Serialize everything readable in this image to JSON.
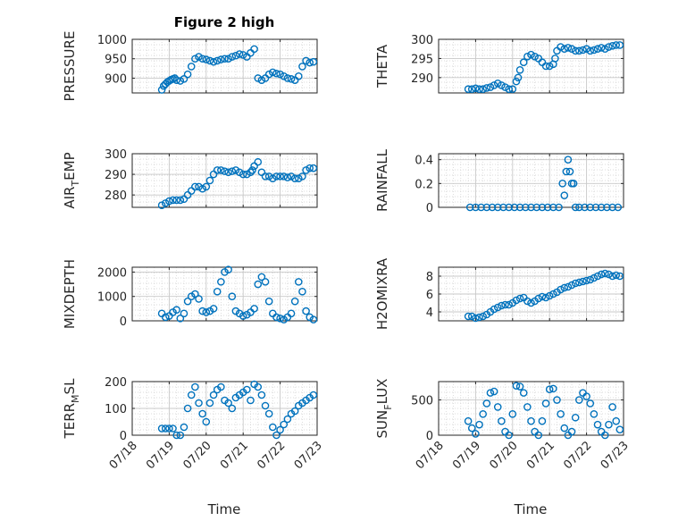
{
  "figure": {
    "title": "Figure 2 high",
    "xlabel": "Time",
    "x_ticks": [
      "07/18",
      "07/19",
      "07/20",
      "07/21",
      "07/22",
      "07/23"
    ],
    "marker_color": "#0072BD",
    "marker": "open-circle"
  },
  "chart_data": [
    {
      "type": "scatter",
      "ylabel": "PRESSURE",
      "ylim": [
        862,
        1000
      ],
      "yticks": [
        "1000",
        "950",
        "900"
      ],
      "ytick_values": [
        1000,
        950,
        900
      ],
      "grid": true,
      "x": [
        0.8,
        0.85,
        0.9,
        0.95,
        1.0,
        1.05,
        1.1,
        1.15,
        1.2,
        1.3,
        1.4,
        1.5,
        1.6,
        1.7,
        1.8,
        1.9,
        2.0,
        2.1,
        2.2,
        2.3,
        2.4,
        2.5,
        2.6,
        2.7,
        2.8,
        2.9,
        3.0,
        3.1,
        3.2,
        3.3,
        3.4,
        3.5,
        3.6,
        3.7,
        3.8,
        3.9,
        4.0,
        4.1,
        4.2,
        4.3,
        4.4,
        4.5,
        4.6,
        4.7,
        4.8,
        4.9
      ],
      "y": [
        870,
        880,
        885,
        890,
        893,
        896,
        898,
        900,
        895,
        893,
        898,
        910,
        930,
        950,
        955,
        950,
        948,
        945,
        942,
        945,
        948,
        950,
        950,
        955,
        958,
        962,
        960,
        955,
        965,
        975,
        900,
        895,
        900,
        910,
        915,
        912,
        910,
        905,
        900,
        898,
        895,
        905,
        930,
        945,
        940,
        942
      ]
    },
    {
      "type": "scatter",
      "ylabel": "THETA",
      "ylim": [
        286,
        300
      ],
      "yticks": [
        "300",
        "295",
        "290"
      ],
      "ytick_values": [
        300,
        295,
        290
      ],
      "grid": true,
      "x": [
        0.8,
        0.9,
        1.0,
        1.1,
        1.2,
        1.3,
        1.4,
        1.5,
        1.6,
        1.7,
        1.8,
        1.9,
        2.0,
        2.1,
        2.15,
        2.2,
        2.3,
        2.4,
        2.5,
        2.6,
        2.7,
        2.8,
        2.9,
        3.0,
        3.1,
        3.15,
        3.2,
        3.3,
        3.4,
        3.5,
        3.6,
        3.7,
        3.8,
        3.9,
        4.0,
        4.1,
        4.2,
        4.3,
        4.4,
        4.5,
        4.6,
        4.7,
        4.8,
        4.9
      ],
      "y": [
        287,
        287,
        287.2,
        287,
        287,
        287.3,
        287.5,
        288,
        288.5,
        288,
        287.5,
        287,
        287,
        289,
        290,
        292,
        294,
        295.5,
        296,
        295.5,
        295,
        294,
        293,
        293,
        293.5,
        295,
        297,
        298,
        297.5,
        297.8,
        297.5,
        297,
        297,
        297.2,
        297.5,
        297,
        297.2,
        297.5,
        297.8,
        297.5,
        298,
        298.3,
        298.5,
        298.5
      ]
    },
    {
      "type": "scatter",
      "ylabel": "AIR_TEMP",
      "ylim": [
        274,
        300
      ],
      "yticks": [
        "300",
        "290",
        "280"
      ],
      "ytick_values": [
        300,
        290,
        280
      ],
      "grid": true,
      "x": [
        0.8,
        0.9,
        1.0,
        1.1,
        1.2,
        1.3,
        1.4,
        1.5,
        1.6,
        1.7,
        1.8,
        1.9,
        2.0,
        2.1,
        2.2,
        2.3,
        2.4,
        2.5,
        2.6,
        2.7,
        2.8,
        2.9,
        3.0,
        3.1,
        3.2,
        3.25,
        3.3,
        3.4,
        3.5,
        3.6,
        3.7,
        3.8,
        3.9,
        4.0,
        4.1,
        4.2,
        4.3,
        4.4,
        4.5,
        4.6,
        4.7,
        4.8,
        4.9
      ],
      "y": [
        275,
        276,
        277,
        277.5,
        277.5,
        277.5,
        278,
        280,
        282,
        284,
        284,
        283,
        284,
        287,
        290,
        292,
        292,
        291.5,
        291,
        291.5,
        292,
        291,
        290,
        290,
        291,
        292,
        294,
        296,
        291,
        289,
        289,
        288,
        289,
        289,
        289,
        288.5,
        289,
        288,
        288,
        289,
        292,
        293,
        293
      ]
    },
    {
      "type": "scatter",
      "ylabel": "RAINFALL",
      "ylim": [
        0,
        0.45
      ],
      "yticks": [
        "0.4",
        "0.2",
        "0"
      ],
      "ytick_values": [
        0.4,
        0.2,
        0
      ],
      "grid": true,
      "x": [
        0.85,
        1.0,
        1.15,
        1.3,
        1.45,
        1.6,
        1.75,
        1.9,
        2.05,
        2.2,
        2.35,
        2.5,
        2.65,
        2.8,
        2.95,
        3.1,
        3.25,
        3.35,
        3.4,
        3.45,
        3.5,
        3.55,
        3.6,
        3.65,
        3.7,
        3.8,
        3.95,
        4.1,
        4.25,
        4.4,
        4.55,
        4.7,
        4.85
      ],
      "y": [
        0,
        0,
        0,
        0,
        0,
        0,
        0,
        0,
        0,
        0,
        0,
        0,
        0,
        0,
        0,
        0,
        0,
        0.2,
        0.1,
        0.3,
        0.4,
        0.3,
        0.2,
        0.2,
        0,
        0,
        0,
        0,
        0,
        0,
        0,
        0,
        0
      ]
    },
    {
      "type": "scatter",
      "ylabel": "MIXDEPTH",
      "ylim": [
        0,
        2200
      ],
      "yticks": [
        "2000",
        "1000",
        "0"
      ],
      "ytick_values": [
        2000,
        1000,
        0
      ],
      "grid": true,
      "x": [
        0.8,
        0.9,
        1.0,
        1.1,
        1.2,
        1.3,
        1.4,
        1.5,
        1.6,
        1.7,
        1.8,
        1.9,
        2.0,
        2.1,
        2.2,
        2.3,
        2.4,
        2.5,
        2.6,
        2.7,
        2.8,
        2.9,
        3.0,
        3.1,
        3.2,
        3.3,
        3.4,
        3.5,
        3.6,
        3.7,
        3.8,
        3.9,
        4.0,
        4.1,
        4.2,
        4.3,
        4.4,
        4.5,
        4.6,
        4.7,
        4.8,
        4.9
      ],
      "y": [
        300,
        150,
        200,
        350,
        450,
        100,
        300,
        800,
        1000,
        1100,
        900,
        400,
        350,
        400,
        500,
        1200,
        1600,
        2000,
        2100,
        1000,
        400,
        300,
        200,
        250,
        350,
        500,
        1500,
        1800,
        1600,
        800,
        300,
        150,
        100,
        50,
        150,
        300,
        800,
        1600,
        1200,
        400,
        150,
        50
      ]
    },
    {
      "type": "scatter",
      "ylabel": "H2OMIXRA",
      "ylim": [
        3,
        9
      ],
      "yticks": [
        "8",
        "6",
        "4"
      ],
      "ytick_values": [
        8,
        6,
        4
      ],
      "grid": true,
      "x": [
        0.8,
        0.9,
        1.0,
        1.1,
        1.2,
        1.3,
        1.4,
        1.5,
        1.6,
        1.7,
        1.8,
        1.9,
        2.0,
        2.1,
        2.2,
        2.3,
        2.4,
        2.5,
        2.6,
        2.7,
        2.8,
        2.9,
        3.0,
        3.1,
        3.2,
        3.3,
        3.4,
        3.5,
        3.6,
        3.7,
        3.8,
        3.9,
        4.0,
        4.1,
        4.2,
        4.3,
        4.4,
        4.5,
        4.6,
        4.7,
        4.8,
        4.9
      ],
      "y": [
        3.5,
        3.5,
        3.3,
        3.4,
        3.5,
        3.7,
        4.0,
        4.3,
        4.5,
        4.7,
        4.8,
        4.8,
        5.0,
        5.3,
        5.5,
        5.6,
        5.2,
        5.0,
        5.2,
        5.5,
        5.7,
        5.6,
        5.8,
        6.0,
        6.2,
        6.5,
        6.7,
        6.8,
        7.0,
        7.2,
        7.3,
        7.4,
        7.5,
        7.6,
        7.8,
        8.0,
        8.2,
        8.3,
        8.2,
        8.0,
        8.1,
        8.0
      ]
    },
    {
      "type": "scatter",
      "ylabel": "TERR_MSL",
      "ylim": [
        0,
        200
      ],
      "yticks": [
        "200",
        "100",
        "0"
      ],
      "ytick_values": [
        200,
        100,
        0
      ],
      "grid": true,
      "x": [
        0.8,
        0.9,
        1.0,
        1.1,
        1.2,
        1.3,
        1.4,
        1.5,
        1.6,
        1.7,
        1.8,
        1.9,
        2.0,
        2.1,
        2.2,
        2.3,
        2.4,
        2.5,
        2.6,
        2.7,
        2.8,
        2.9,
        3.0,
        3.1,
        3.2,
        3.3,
        3.4,
        3.5,
        3.6,
        3.7,
        3.8,
        3.9,
        4.0,
        4.1,
        4.2,
        4.3,
        4.4,
        4.5,
        4.6,
        4.7,
        4.8,
        4.9
      ],
      "y": [
        25,
        25,
        25,
        25,
        0,
        0,
        30,
        100,
        150,
        180,
        120,
        80,
        50,
        120,
        150,
        170,
        180,
        130,
        120,
        100,
        140,
        150,
        160,
        170,
        130,
        190,
        180,
        150,
        110,
        80,
        30,
        0,
        20,
        40,
        60,
        80,
        90,
        110,
        120,
        130,
        140,
        150
      ]
    },
    {
      "type": "scatter",
      "ylabel": "SUN_FLUX",
      "ylim": [
        0,
        760
      ],
      "yticks": [
        "500",
        "0"
      ],
      "ytick_values": [
        500,
        0
      ],
      "grid": true,
      "x": [
        0.8,
        0.9,
        1.0,
        1.1,
        1.2,
        1.3,
        1.4,
        1.5,
        1.6,
        1.7,
        1.8,
        1.9,
        2.0,
        2.1,
        2.2,
        2.3,
        2.4,
        2.5,
        2.6,
        2.7,
        2.8,
        2.9,
        3.0,
        3.1,
        3.2,
        3.3,
        3.4,
        3.5,
        3.6,
        3.7,
        3.8,
        3.9,
        4.0,
        4.1,
        4.2,
        4.3,
        4.4,
        4.5,
        4.6,
        4.7,
        4.8,
        4.9
      ],
      "y": [
        200,
        100,
        20,
        150,
        300,
        450,
        600,
        620,
        400,
        200,
        50,
        0,
        300,
        700,
        690,
        600,
        400,
        200,
        50,
        0,
        200,
        450,
        650,
        660,
        500,
        300,
        100,
        0,
        50,
        250,
        500,
        600,
        550,
        450,
        300,
        150,
        50,
        0,
        150,
        400,
        200,
        80
      ]
    }
  ]
}
